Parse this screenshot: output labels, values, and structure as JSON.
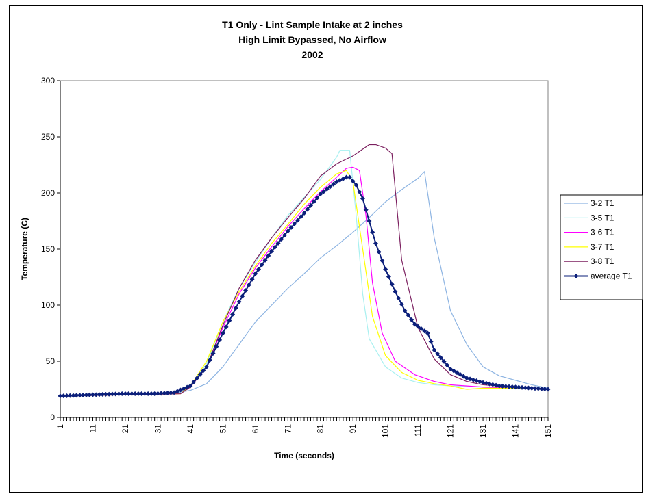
{
  "chart_data": {
    "type": "line",
    "title_lines": [
      "T1 Only - Lint Sample Intake at 2 inches",
      "High Limit Bypassed, No Airflow",
      "2002"
    ],
    "xlabel": "Time (seconds)",
    "ylabel": "Temperature (C)",
    "ylim": [
      0,
      300
    ],
    "yticks": [
      0,
      50,
      100,
      150,
      200,
      250,
      300
    ],
    "xlim": [
      1,
      151
    ],
    "xticks": [
      1,
      11,
      21,
      31,
      41,
      51,
      61,
      71,
      81,
      91,
      101,
      111,
      121,
      131,
      141,
      151
    ],
    "legend_position": "right",
    "grid": false,
    "series": [
      {
        "name": "3-2 T1",
        "color": "#8db4e2",
        "marker": "none",
        "points": [
          [
            1,
            19
          ],
          [
            35,
            21
          ],
          [
            41,
            24
          ],
          [
            46,
            30
          ],
          [
            51,
            45
          ],
          [
            56,
            65
          ],
          [
            61,
            85
          ],
          [
            66,
            100
          ],
          [
            71,
            115
          ],
          [
            76,
            128
          ],
          [
            81,
            142
          ],
          [
            86,
            153
          ],
          [
            91,
            165
          ],
          [
            96,
            178
          ],
          [
            101,
            192
          ],
          [
            106,
            203
          ],
          [
            111,
            213
          ],
          [
            113,
            219
          ],
          [
            116,
            160
          ],
          [
            121,
            95
          ],
          [
            126,
            65
          ],
          [
            131,
            45
          ],
          [
            136,
            37
          ],
          [
            141,
            33
          ],
          [
            146,
            29
          ],
          [
            151,
            26
          ]
        ]
      },
      {
        "name": "3-5 T1",
        "color": "#a8f0f0",
        "marker": "none",
        "points": [
          [
            1,
            19
          ],
          [
            38,
            21
          ],
          [
            41,
            27
          ],
          [
            46,
            48
          ],
          [
            51,
            85
          ],
          [
            56,
            115
          ],
          [
            61,
            138
          ],
          [
            66,
            160
          ],
          [
            71,
            180
          ],
          [
            76,
            196
          ],
          [
            81,
            212
          ],
          [
            86,
            232
          ],
          [
            87,
            238
          ],
          [
            90,
            238
          ],
          [
            92,
            180
          ],
          [
            94,
            110
          ],
          [
            96,
            70
          ],
          [
            101,
            45
          ],
          [
            106,
            35
          ],
          [
            111,
            31
          ],
          [
            116,
            29
          ],
          [
            121,
            28
          ],
          [
            131,
            27
          ],
          [
            141,
            26
          ],
          [
            151,
            25
          ]
        ]
      },
      {
        "name": "3-6 T1",
        "color": "#ff00ff",
        "marker": "none",
        "points": [
          [
            1,
            19
          ],
          [
            38,
            21
          ],
          [
            41,
            27
          ],
          [
            46,
            45
          ],
          [
            51,
            80
          ],
          [
            56,
            110
          ],
          [
            61,
            133
          ],
          [
            66,
            152
          ],
          [
            71,
            170
          ],
          [
            76,
            186
          ],
          [
            81,
            201
          ],
          [
            86,
            214
          ],
          [
            89,
            222
          ],
          [
            91,
            223
          ],
          [
            93,
            220
          ],
          [
            95,
            180
          ],
          [
            97,
            120
          ],
          [
            100,
            75
          ],
          [
            104,
            50
          ],
          [
            110,
            38
          ],
          [
            116,
            32
          ],
          [
            121,
            29
          ],
          [
            131,
            27
          ],
          [
            141,
            26
          ],
          [
            151,
            25
          ]
        ]
      },
      {
        "name": "3-7 T1",
        "color": "#ffff00",
        "marker": "none",
        "points": [
          [
            1,
            19
          ],
          [
            38,
            21
          ],
          [
            41,
            28
          ],
          [
            46,
            50
          ],
          [
            51,
            85
          ],
          [
            56,
            112
          ],
          [
            61,
            135
          ],
          [
            66,
            155
          ],
          [
            71,
            172
          ],
          [
            76,
            190
          ],
          [
            81,
            205
          ],
          [
            86,
            217
          ],
          [
            89,
            220
          ],
          [
            91,
            210
          ],
          [
            94,
            150
          ],
          [
            97,
            90
          ],
          [
            101,
            55
          ],
          [
            106,
            40
          ],
          [
            111,
            33
          ],
          [
            116,
            30
          ],
          [
            121,
            28
          ],
          [
            126,
            25
          ],
          [
            131,
            26
          ],
          [
            141,
            26
          ],
          [
            151,
            25
          ]
        ]
      },
      {
        "name": "3-8 T1",
        "color": "#7b1f5f",
        "marker": "none",
        "points": [
          [
            1,
            19
          ],
          [
            38,
            21
          ],
          [
            41,
            27
          ],
          [
            46,
            45
          ],
          [
            51,
            82
          ],
          [
            56,
            115
          ],
          [
            61,
            140
          ],
          [
            66,
            160
          ],
          [
            71,
            178
          ],
          [
            76,
            195
          ],
          [
            81,
            215
          ],
          [
            86,
            226
          ],
          [
            91,
            233
          ],
          [
            96,
            243
          ],
          [
            98,
            243
          ],
          [
            101,
            240
          ],
          [
            103,
            235
          ],
          [
            106,
            140
          ],
          [
            111,
            80
          ],
          [
            116,
            52
          ],
          [
            121,
            38
          ],
          [
            126,
            32
          ],
          [
            131,
            29
          ],
          [
            141,
            27
          ],
          [
            151,
            25
          ]
        ]
      },
      {
        "name": "average T1",
        "color": "#0b1f7a",
        "marker": "diamond",
        "points": [
          [
            1,
            19
          ],
          [
            10,
            20
          ],
          [
            20,
            21
          ],
          [
            30,
            21
          ],
          [
            36,
            22
          ],
          [
            41,
            28
          ],
          [
            46,
            45
          ],
          [
            51,
            75
          ],
          [
            56,
            103
          ],
          [
            61,
            128
          ],
          [
            66,
            148
          ],
          [
            71,
            166
          ],
          [
            76,
            182
          ],
          [
            81,
            199
          ],
          [
            86,
            210
          ],
          [
            89,
            214
          ],
          [
            90,
            214
          ],
          [
            92,
            207
          ],
          [
            94,
            195
          ],
          [
            96,
            175
          ],
          [
            98,
            155
          ],
          [
            101,
            132
          ],
          [
            104,
            112
          ],
          [
            107,
            95
          ],
          [
            110,
            83
          ],
          [
            113,
            77
          ],
          [
            114,
            75
          ],
          [
            116,
            60
          ],
          [
            121,
            43
          ],
          [
            126,
            35
          ],
          [
            131,
            31
          ],
          [
            136,
            28
          ],
          [
            141,
            27
          ],
          [
            146,
            26
          ],
          [
            151,
            25
          ]
        ]
      }
    ]
  }
}
